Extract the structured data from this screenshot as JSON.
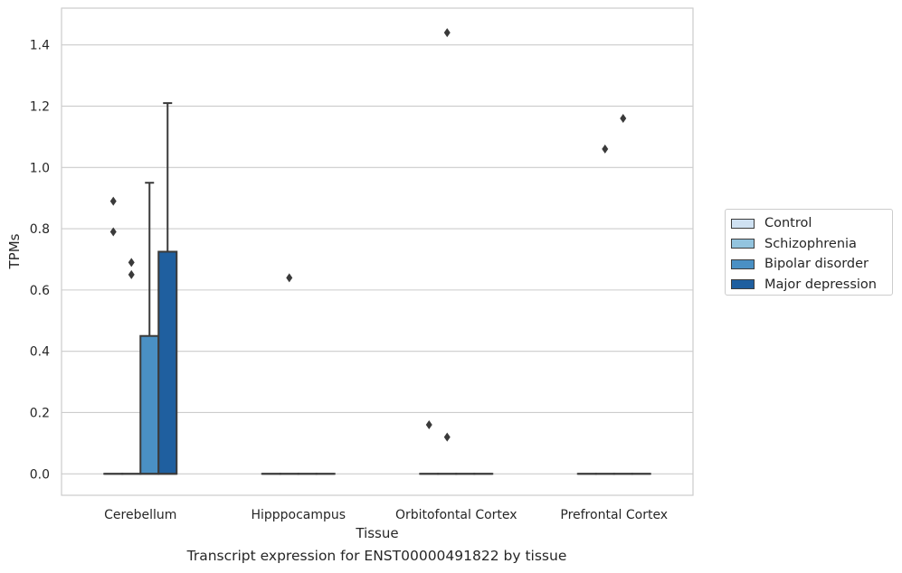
{
  "chart_data": {
    "type": "box",
    "title": "Transcript expression for ENST00000491822 by tissue",
    "xlabel": "Tissue",
    "ylabel": "TPMs",
    "ylim": [
      -0.07,
      1.52
    ],
    "yticks": [
      "0.0",
      "0.2",
      "0.4",
      "0.6",
      "0.8",
      "1.0",
      "1.2",
      "1.4"
    ],
    "categories": [
      "Cerebellum",
      "Hipppocampus",
      "Orbitofontal Cortex",
      "Prefrontal Cortex"
    ],
    "grid": "horizontal",
    "legend_position": "right",
    "series": [
      {
        "name": "Control",
        "color": "#cfe1f2",
        "boxes": [
          {
            "q1": 0,
            "median": 0,
            "q3": 0,
            "whisker_low": 0,
            "whisker_high": 0,
            "outliers": [
              0.89,
              0.79
            ]
          },
          {
            "q1": 0,
            "median": 0,
            "q3": 0,
            "whisker_low": 0,
            "whisker_high": 0,
            "outliers": []
          },
          {
            "q1": 0,
            "median": 0,
            "q3": 0,
            "whisker_low": 0,
            "whisker_high": 0,
            "outliers": [
              0.16
            ]
          },
          {
            "q1": 0,
            "median": 0,
            "q3": 0,
            "whisker_low": 0,
            "whisker_high": 0,
            "outliers": []
          }
        ]
      },
      {
        "name": "Schizophrenia",
        "color": "#93c4de",
        "boxes": [
          {
            "q1": 0,
            "median": 0,
            "q3": 0,
            "whisker_low": 0,
            "whisker_high": 0,
            "outliers": [
              0.69,
              0.65
            ]
          },
          {
            "q1": 0,
            "median": 0,
            "q3": 0,
            "whisker_low": 0,
            "whisker_high": 0,
            "outliers": [
              0.64
            ]
          },
          {
            "q1": 0,
            "median": 0,
            "q3": 0,
            "whisker_low": 0,
            "whisker_high": 0,
            "outliers": [
              1.44,
              0.12
            ]
          },
          {
            "q1": 0,
            "median": 0,
            "q3": 0,
            "whisker_low": 0,
            "whisker_high": 0,
            "outliers": [
              1.06
            ]
          }
        ]
      },
      {
        "name": "Bipolar disorder",
        "color": "#4a90c4",
        "boxes": [
          {
            "q1": 0,
            "median": 0,
            "q3": 0.45,
            "whisker_low": 0,
            "whisker_high": 0.95,
            "outliers": []
          },
          {
            "q1": 0,
            "median": 0,
            "q3": 0,
            "whisker_low": 0,
            "whisker_high": 0,
            "outliers": []
          },
          {
            "q1": 0,
            "median": 0,
            "q3": 0,
            "whisker_low": 0,
            "whisker_high": 0,
            "outliers": []
          },
          {
            "q1": 0,
            "median": 0,
            "q3": 0,
            "whisker_low": 0,
            "whisker_high": 0,
            "outliers": [
              1.16
            ]
          }
        ]
      },
      {
        "name": "Major depression",
        "color": "#1f5f9f",
        "boxes": [
          {
            "q1": 0,
            "median": 0,
            "q3": 0.725,
            "whisker_low": 0,
            "whisker_high": 1.21,
            "outliers": []
          },
          {
            "q1": 0,
            "median": 0,
            "q3": 0,
            "whisker_low": 0,
            "whisker_high": 0,
            "outliers": []
          },
          {
            "q1": 0,
            "median": 0,
            "q3": 0,
            "whisker_low": 0,
            "whisker_high": 0,
            "outliers": []
          },
          {
            "q1": 0,
            "median": 0,
            "q3": 0,
            "whisker_low": 0,
            "whisker_high": 0,
            "outliers": []
          }
        ]
      }
    ]
  }
}
